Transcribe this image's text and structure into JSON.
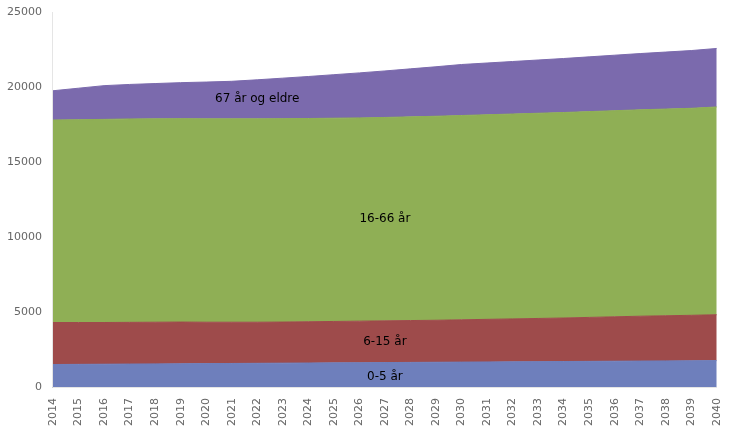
{
  "chart_data": {
    "type": "area",
    "stacked": true,
    "x": [
      2014,
      2015,
      2016,
      2017,
      2018,
      2019,
      2020,
      2021,
      2022,
      2023,
      2024,
      2025,
      2026,
      2027,
      2028,
      2029,
      2030,
      2031,
      2032,
      2033,
      2034,
      2035,
      2036,
      2037,
      2038,
      2039,
      2040
    ],
    "series": [
      {
        "color": "#6e7fbc",
        "values": [
          1500,
          1510,
          1520,
          1530,
          1540,
          1550,
          1560,
          1570,
          1580,
          1590,
          1600,
          1610,
          1620,
          1630,
          1640,
          1650,
          1660,
          1670,
          1680,
          1690,
          1700,
          1710,
          1720,
          1730,
          1740,
          1750,
          1760
        ]
      },
      {
        "color": "#9e4b4b",
        "values": [
          2800,
          2790,
          2780,
          2780,
          2780,
          2780,
          2760,
          2750,
          2740,
          2740,
          2750,
          2760,
          2770,
          2780,
          2790,
          2800,
          2820,
          2840,
          2860,
          2880,
          2900,
          2930,
          2960,
          2990,
          3010,
          3030,
          3060
        ]
      },
      {
        "color": "#8faf55",
        "values": [
          13500,
          13520,
          13540,
          13560,
          13560,
          13560,
          13560,
          13560,
          13560,
          13560,
          13550,
          13550,
          13550,
          13560,
          13580,
          13600,
          13620,
          13640,
          13660,
          13680,
          13700,
          13720,
          13740,
          13760,
          13780,
          13800,
          13850
        ]
      },
      {
        "color": "#7b6aad",
        "values": [
          1950,
          2100,
          2250,
          2300,
          2350,
          2400,
          2450,
          2500,
          2600,
          2700,
          2800,
          2900,
          3000,
          3100,
          3200,
          3300,
          3400,
          3450,
          3500,
          3550,
          3600,
          3650,
          3700,
          3750,
          3800,
          3850,
          3900
        ]
      }
    ],
    "xlim": [
      2014,
      2040
    ],
    "xticks": [
      2014,
      2015,
      2016,
      2017,
      2018,
      2019,
      2020,
      2021,
      2022,
      2023,
      2024,
      2025,
      2026,
      2027,
      2028,
      2029,
      2030,
      2031,
      2032,
      2033,
      2034,
      2035,
      2036,
      2037,
      2038,
      2039,
      2040
    ],
    "ylim": [
      0,
      25000
    ],
    "yticks": [
      0,
      5000,
      10000,
      15000,
      20000,
      25000
    ],
    "grid": false,
    "annotations": [
      {
        "text": "0-5 år",
        "x": 2027,
        "y": 700
      },
      {
        "text": "6-15 år",
        "x": 2027,
        "y": 3020
      },
      {
        "text": "16-66 år",
        "x": 2027,
        "y": 11190
      },
      {
        "text": "67 år og eldre",
        "x": 2022,
        "y": 19180
      }
    ]
  }
}
